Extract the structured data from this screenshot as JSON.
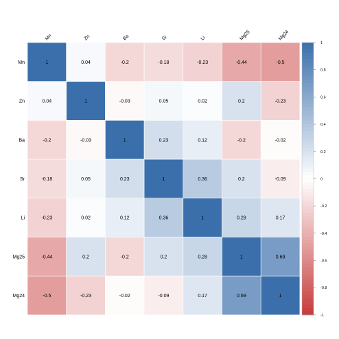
{
  "chart_data": {
    "type": "heatmap",
    "variables": [
      "Mn",
      "Zn",
      "Ba",
      "Sr",
      "Li",
      "Mg25",
      "Mg24"
    ],
    "matrix": [
      [
        1,
        0.04,
        -0.2,
        -0.18,
        -0.23,
        -0.44,
        -0.5
      ],
      [
        0.04,
        1,
        -0.03,
        0.05,
        0.02,
        0.2,
        -0.23
      ],
      [
        -0.2,
        -0.03,
        1,
        0.23,
        0.12,
        -0.2,
        -0.02
      ],
      [
        -0.18,
        0.05,
        0.23,
        1,
        0.36,
        0.2,
        -0.09
      ],
      [
        -0.23,
        0.02,
        0.12,
        0.36,
        1,
        0.28,
        0.17
      ],
      [
        -0.44,
        0.2,
        -0.2,
        0.2,
        0.28,
        1,
        0.69
      ],
      [
        -0.5,
        -0.23,
        -0.02,
        -0.09,
        0.17,
        0.69,
        1
      ]
    ],
    "colorbar": {
      "range": [
        -1,
        1
      ],
      "ticks": [
        1,
        0.8,
        0.6,
        0.4,
        0.2,
        0,
        -0.2,
        -0.4,
        -0.6,
        -0.8,
        -1
      ],
      "high_color": "#3b6fab",
      "mid_color": "#ffffff",
      "low_color": "#c73a3a"
    },
    "column_label_rotation": "45deg"
  }
}
